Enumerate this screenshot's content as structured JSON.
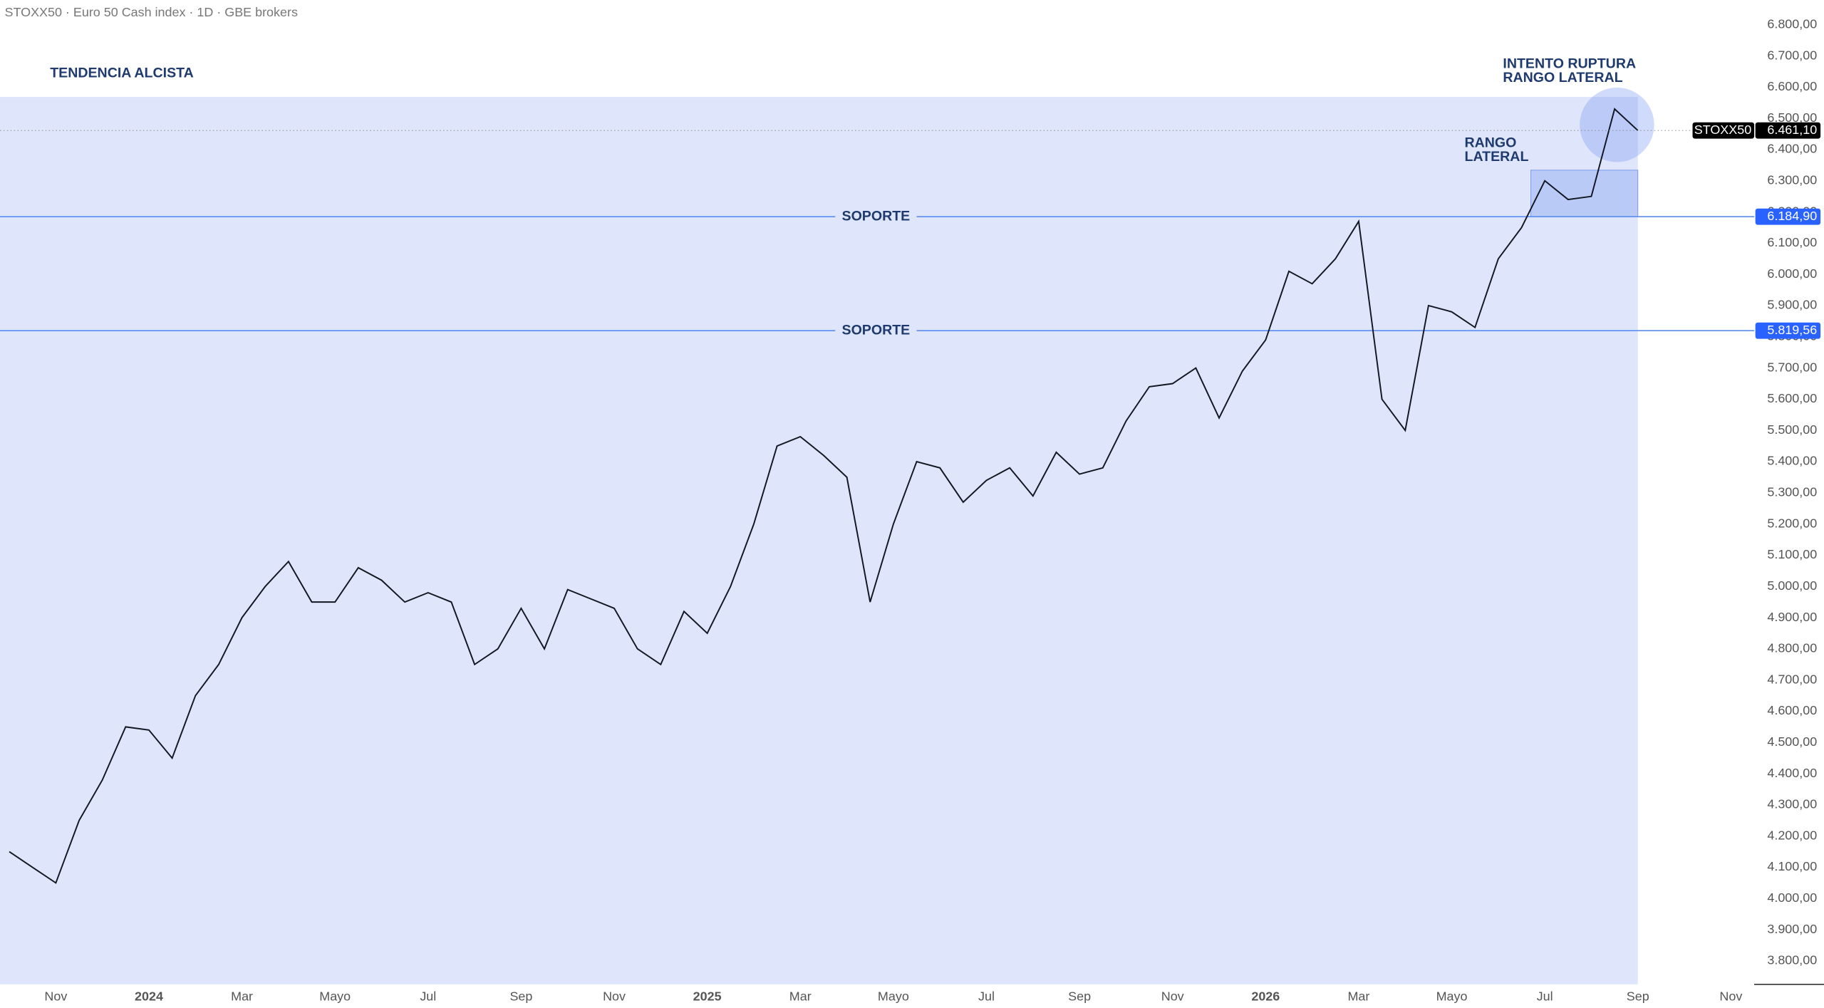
{
  "header": {
    "title": "STOXX50 · Euro 50 Cash index · 1D · GBE brokers"
  },
  "chart_data": {
    "type": "line",
    "categories": [
      null,
      null,
      "Nov",
      null,
      null,
      null,
      "2024",
      null,
      null,
      null,
      "Mar",
      null,
      null,
      null,
      "Mayo",
      null,
      null,
      null,
      "Jul",
      null,
      null,
      null,
      "Sep",
      null,
      null,
      null,
      "Nov",
      null,
      null,
      null,
      "2025",
      null,
      null,
      null,
      "Mar",
      null,
      null,
      null,
      "Mayo",
      null,
      null,
      null,
      "Jul",
      null,
      null,
      null,
      "Sep",
      null,
      null,
      null,
      "Nov",
      null,
      null,
      null,
      "2026",
      null,
      null,
      null,
      "Mar",
      null,
      null,
      null,
      "Mayo",
      null,
      null,
      null,
      "Jul",
      null,
      null,
      null,
      "Sep",
      null,
      null,
      null,
      "Nov"
    ],
    "series": [
      {
        "name": "STOXX50",
        "color": "#131722",
        "values": [
          4150,
          4100,
          4050,
          4250,
          4380,
          4550,
          4540,
          4450,
          4650,
          4750,
          4900,
          5000,
          5080,
          4950,
          4950,
          5060,
          5020,
          4950,
          4980,
          4950,
          4750,
          4800,
          4930,
          4800,
          4990,
          4960,
          4930,
          4800,
          4750,
          4920,
          4850,
          5000,
          5200,
          5450,
          5480,
          5420,
          5350,
          4950,
          5200,
          5400,
          5380,
          5270,
          5340,
          5380,
          5290,
          5430,
          5360,
          5380,
          5530,
          5640,
          5650,
          5700,
          5540,
          5690,
          5790,
          6010,
          5970,
          6050,
          6170,
          5600,
          5500,
          5900,
          5880,
          5830,
          6050,
          6150,
          6300,
          6240,
          6250,
          6530,
          6461.1,
          null,
          null,
          null,
          null
        ]
      }
    ],
    "ylim": [
      3725,
      6878
    ],
    "yticks": [
      {
        "value": 3800,
        "label": "3.800,00"
      },
      {
        "value": 3900,
        "label": "3.900,00"
      },
      {
        "value": 4000,
        "label": "4.000,00"
      },
      {
        "value": 4100,
        "label": "4.100,00"
      },
      {
        "value": 4200,
        "label": "4.200,00"
      },
      {
        "value": 4300,
        "label": "4.300,00"
      },
      {
        "value": 4400,
        "label": "4.400,00"
      },
      {
        "value": 4500,
        "label": "4.500,00"
      },
      {
        "value": 4600,
        "label": "4.600,00"
      },
      {
        "value": 4700,
        "label": "4.700,00"
      },
      {
        "value": 4800,
        "label": "4.800,00"
      },
      {
        "value": 4900,
        "label": "4.900,00"
      },
      {
        "value": 5000,
        "label": "5.000,00"
      },
      {
        "value": 5100,
        "label": "5.100,00"
      },
      {
        "value": 5200,
        "label": "5.200,00"
      },
      {
        "value": 5300,
        "label": "5.300,00"
      },
      {
        "value": 5400,
        "label": "5.400,00"
      },
      {
        "value": 5500,
        "label": "5.500,00"
      },
      {
        "value": 5600,
        "label": "5.600,00"
      },
      {
        "value": 5700,
        "label": "5.700,00"
      },
      {
        "value": 5800,
        "label": "5.800,00"
      },
      {
        "value": 5900,
        "label": "5.900,00"
      },
      {
        "value": 6000,
        "label": "6.000,00"
      },
      {
        "value": 6100,
        "label": "6.100,00"
      },
      {
        "value": 6200,
        "label": "6.200,00"
      },
      {
        "value": 6300,
        "label": "6.300,00"
      },
      {
        "value": 6400,
        "label": "6.400,00"
      },
      {
        "value": 6500,
        "label": "6.500,00"
      },
      {
        "value": 6600,
        "label": "6.600,00"
      },
      {
        "value": 6700,
        "label": "6.700,00"
      },
      {
        "value": 6800,
        "label": "6.800,00"
      }
    ],
    "levels": [
      {
        "label": "SOPORTE",
        "value": 6184.9,
        "value_label": "6.184,90"
      },
      {
        "label": "SOPORTE",
        "value": 5819.56,
        "value_label": "5.819,56"
      }
    ],
    "last_price": {
      "value": 6461.1,
      "label": "6.461,10"
    },
    "range_box": {
      "lines": [
        "RANGO",
        "LATERAL"
      ],
      "range": [
        6184.9,
        6334
      ]
    },
    "annotations": {
      "trend": "TENDENCIA ALCISTA",
      "breakout": [
        "INTENTO RUPTURA",
        "RANGO LATERAL"
      ]
    }
  }
}
